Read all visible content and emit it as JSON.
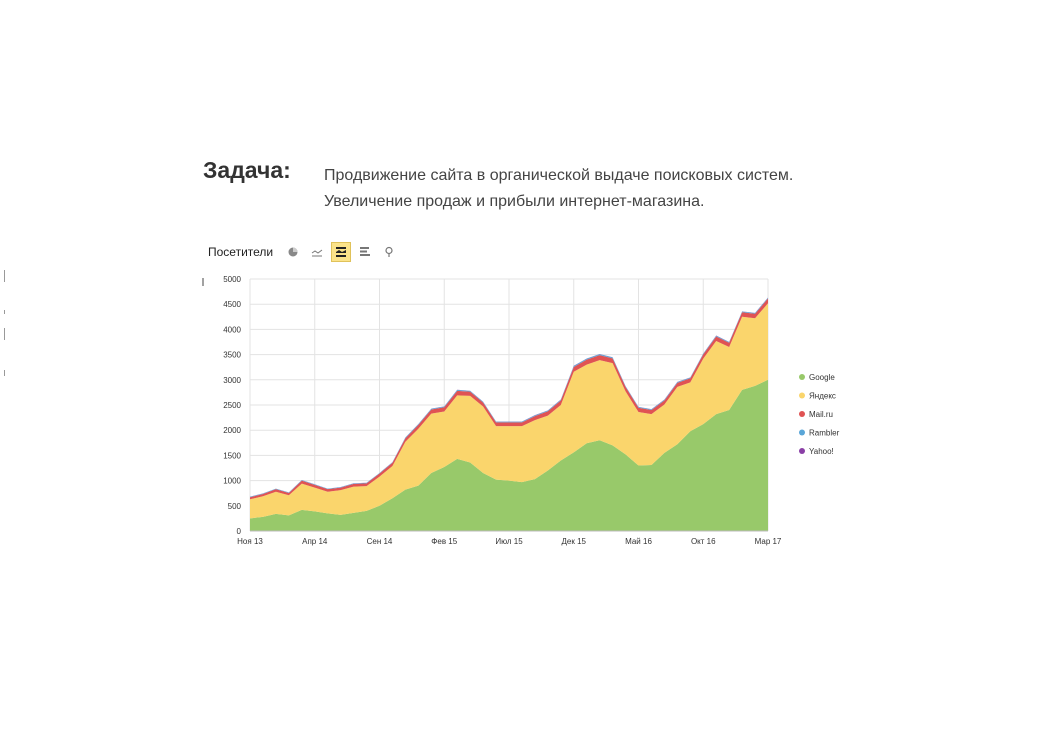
{
  "task": {
    "label": "Задача:",
    "line1": "Продвижение сайта в органической выдаче поисковых систем.",
    "line2": "Увеличение продаж и прибыли интернет-магазина."
  },
  "toolbar": {
    "label": "Посетители",
    "buttons": [
      {
        "icon": "pie-chart-icon",
        "active": false
      },
      {
        "icon": "line-chart-icon",
        "active": false
      },
      {
        "icon": "area-chart-icon",
        "active": true
      },
      {
        "icon": "bar-chart-icon",
        "active": false
      },
      {
        "icon": "map-pin-icon",
        "active": false
      }
    ]
  },
  "chart_data": {
    "type": "area",
    "stacked": true,
    "title": "",
    "xlabel": "",
    "ylabel": "",
    "ylim": [
      0,
      5000
    ],
    "yticks": [
      0,
      500,
      1000,
      1500,
      2000,
      2500,
      3000,
      3500,
      4000,
      4500,
      5000
    ],
    "xlim": [
      0,
      40
    ],
    "xtick_positions": [
      0,
      5,
      10,
      15,
      20,
      25,
      30,
      35,
      40
    ],
    "xtick_labels": [
      "Ноя 13",
      "Апр 14",
      "Сен 14",
      "Фев 15",
      "Июл 15",
      "Дек 15",
      "Май 16",
      "Окт 16",
      "Мар 17"
    ],
    "grid": true,
    "legend_position": "right",
    "x": [
      0,
      1,
      2,
      3,
      4,
      5,
      6,
      7,
      8,
      9,
      10,
      11,
      12,
      13,
      14,
      15,
      16,
      17,
      18,
      19,
      20,
      21,
      22,
      23,
      24,
      25,
      26,
      27,
      28,
      29,
      30,
      31,
      32,
      33,
      34,
      35,
      36,
      37,
      38,
      39,
      40
    ],
    "series": [
      {
        "name": "Google",
        "color": "#98c96a",
        "values": [
          250,
          280,
          340,
          310,
          420,
          390,
          350,
          320,
          360,
          400,
          500,
          650,
          820,
          900,
          1150,
          1270,
          1430,
          1360,
          1150,
          1020,
          1000,
          970,
          1030,
          1200,
          1400,
          1560,
          1740,
          1800,
          1700,
          1520,
          1300,
          1310,
          1550,
          1720,
          1980,
          2120,
          2320,
          2400,
          2800,
          2880,
          3000
        ]
      },
      {
        "name": "Яндекс",
        "color": "#fad56c",
        "values": [
          380,
          410,
          440,
          400,
          520,
          470,
          430,
          490,
          520,
          490,
          580,
          640,
          950,
          1130,
          1180,
          1100,
          1260,
          1320,
          1320,
          1060,
          1080,
          1110,
          1170,
          1090,
          1100,
          1600,
          1560,
          1590,
          1630,
          1250,
          1060,
          1010,
          960,
          1140,
          970,
          1300,
          1450,
          1250,
          1450,
          1340,
          1520
        ]
      },
      {
        "name": "Mail.ru",
        "color": "#e05353",
        "values": [
          40,
          45,
          50,
          45,
          60,
          55,
          50,
          50,
          55,
          55,
          60,
          65,
          70,
          75,
          80,
          85,
          90,
          85,
          80,
          75,
          75,
          75,
          80,
          85,
          90,
          95,
          100,
          100,
          95,
          90,
          85,
          80,
          80,
          80,
          80,
          85,
          90,
          85,
          90,
          90,
          95
        ]
      },
      {
        "name": "Rambler",
        "color": "#5aa6d8",
        "values": [
          10,
          10,
          10,
          10,
          10,
          10,
          10,
          10,
          10,
          10,
          10,
          10,
          15,
          15,
          15,
          15,
          20,
          15,
          15,
          15,
          15,
          15,
          15,
          15,
          15,
          20,
          20,
          20,
          20,
          15,
          15,
          15,
          15,
          15,
          15,
          15,
          15,
          15,
          15,
          15,
          15
        ]
      },
      {
        "name": "Yahoo!",
        "color": "#8a3fa6",
        "values": [
          2,
          2,
          2,
          2,
          2,
          2,
          2,
          2,
          2,
          2,
          2,
          2,
          3,
          3,
          3,
          3,
          3,
          3,
          3,
          3,
          3,
          3,
          3,
          3,
          3,
          3,
          3,
          3,
          3,
          3,
          3,
          3,
          3,
          3,
          3,
          3,
          3,
          3,
          3,
          3,
          3
        ]
      }
    ]
  }
}
